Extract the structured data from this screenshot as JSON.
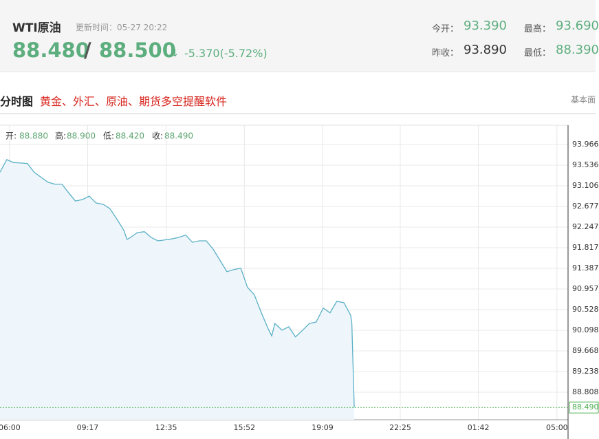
{
  "header": {
    "title": "WTI原油",
    "update_time": "更新时间：05-27 20:22",
    "price": "88.480",
    "separator": "/",
    "price2": "88.500",
    "arrow": "↓",
    "change": "-5.370(-5.72%)",
    "stats": [
      {
        "label": "今开：",
        "value": "93.390"
      },
      {
        "label": "最高：",
        "value": "93.690"
      },
      {
        "label": "昨收：",
        "value": "93.890"
      },
      {
        "label": "最低：",
        "value": "88.390"
      }
    ]
  },
  "section": {
    "title": "分时图",
    "promo": "黄金、外汇、原油、期货多空提醒软件",
    "tab": "基本面"
  },
  "chart_data": {
    "type": "line",
    "info": [
      {
        "label": "开:",
        "value": "88.880"
      },
      {
        "label": "高:",
        "value": "88.900"
      },
      {
        "label": "低:",
        "value": "88.420"
      },
      {
        "label": "收:",
        "value": "88.490"
      }
    ],
    "x": [
      -24,
      -7,
      10,
      28,
      45,
      62,
      80,
      97,
      114,
      132,
      149,
      166,
      184,
      201,
      218,
      236,
      253,
      270,
      288,
      296,
      305,
      322,
      340,
      357,
      374,
      392,
      409,
      426,
      444,
      461,
      478,
      496,
      513,
      530,
      548,
      565,
      583,
      600,
      617,
      635,
      652,
      661,
      669,
      687,
      704,
      721,
      739,
      756,
      773,
      791,
      808,
      825,
      843,
      860,
      863,
      869
    ],
    "y": [
      93.39,
      93.65,
      93.59,
      93.58,
      93.57,
      93.39,
      93.28,
      93.18,
      93.14,
      93.14,
      92.96,
      92.79,
      92.82,
      92.89,
      92.75,
      92.72,
      92.63,
      92.42,
      92.18,
      91.99,
      92.03,
      92.13,
      92.15,
      92.03,
      91.96,
      91.98,
      92.0,
      92.03,
      92.08,
      91.93,
      91.96,
      91.96,
      91.79,
      91.56,
      91.32,
      91.36,
      91.39,
      90.99,
      90.84,
      90.46,
      90.13,
      89.98,
      90.24,
      90.1,
      90.17,
      89.96,
      90.1,
      90.24,
      90.27,
      90.56,
      90.46,
      90.7,
      90.67,
      90.41,
      90.24,
      88.49
    ],
    "color": "#5ab0c6",
    "last_price": {
      "value": 88.49,
      "label": "88.490"
    },
    "xlim": [
      -24,
      1408
    ],
    "xticks": [
      {
        "value": 0,
        "label": "06:00"
      },
      {
        "value": 197,
        "label": "09:17"
      },
      {
        "value": 395,
        "label": "12:35"
      },
      {
        "value": 592,
        "label": "15:52"
      },
      {
        "value": 789,
        "label": "19:09"
      },
      {
        "value": 985,
        "label": "22:25"
      },
      {
        "value": 1182,
        "label": "01:42"
      },
      {
        "value": 1380,
        "label": "05:00"
      }
    ],
    "ylim": [
      88.235,
      94.367
    ],
    "yticks": [
      93.966,
      93.536,
      93.106,
      92.677,
      92.247,
      91.817,
      91.387,
      90.957,
      90.528,
      90.098,
      89.668,
      89.238,
      88.808
    ],
    "grid": true
  }
}
